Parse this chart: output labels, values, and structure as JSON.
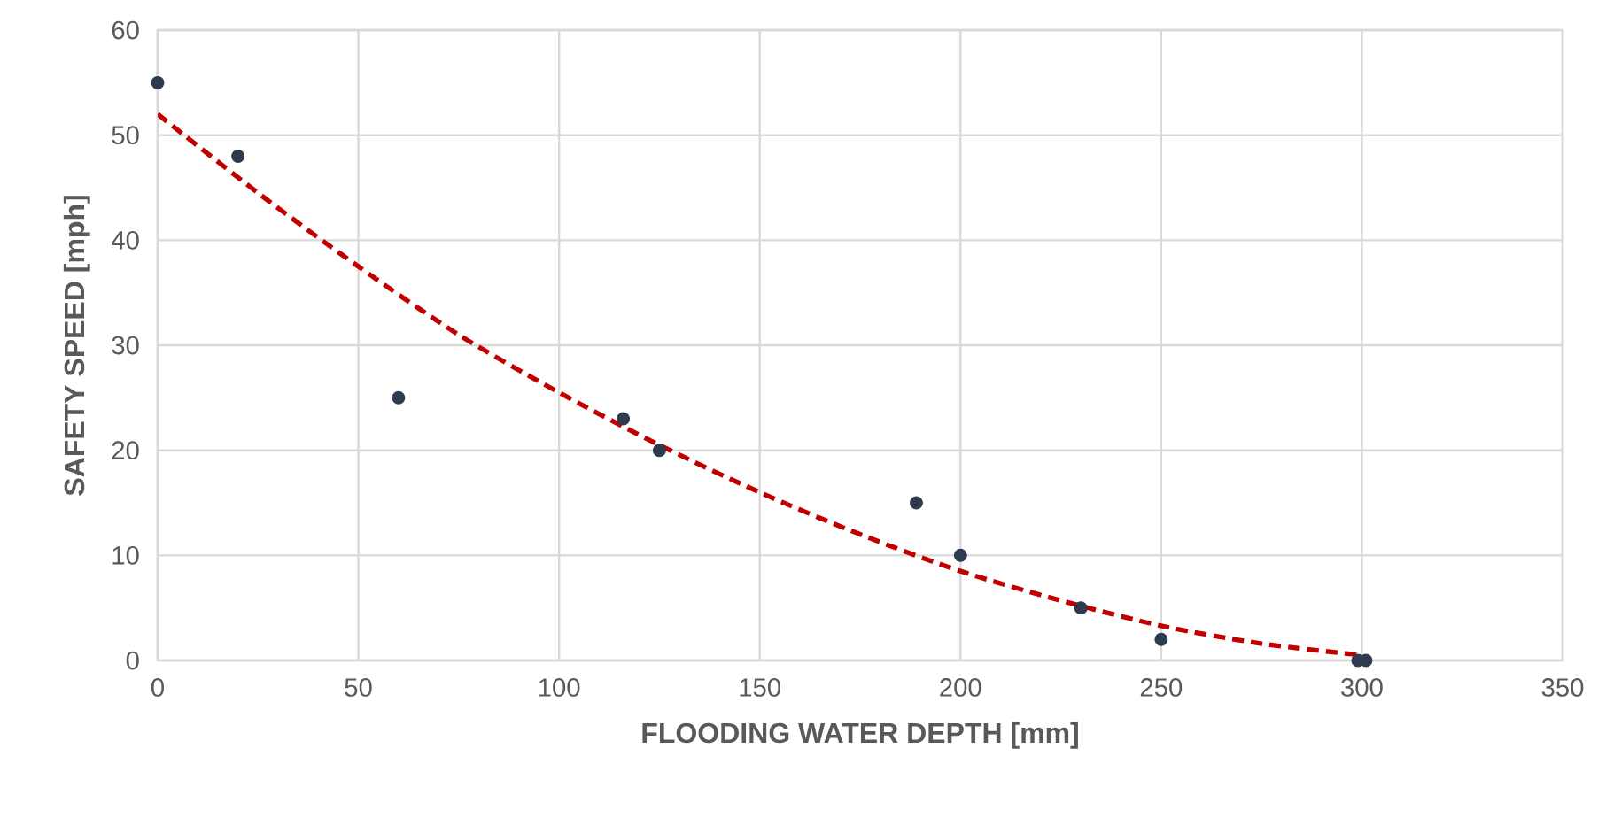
{
  "chart_data": {
    "type": "scatter",
    "xlabel": "FLOODING WATER DEPTH  [mm]",
    "ylabel": "SAFETY SPEED  [mph]",
    "xlim": [
      0,
      350
    ],
    "ylim": [
      0,
      60
    ],
    "xticks": [
      0,
      50,
      100,
      150,
      200,
      250,
      300,
      350
    ],
    "yticks": [
      0,
      10,
      20,
      30,
      40,
      50,
      60
    ],
    "grid": true,
    "series": [
      {
        "color": "#2e3a4e",
        "marker": "circle",
        "x": [
          0,
          20,
          60,
          116,
          125,
          189,
          200,
          230,
          250,
          299,
          301
        ],
        "values": [
          55,
          48,
          25,
          23,
          20,
          15,
          10,
          5,
          2,
          0,
          0
        ]
      },
      {
        "type": "line",
        "color": "#c00000",
        "marker": "none",
        "line_style": "dashed",
        "x": [
          0,
          25,
          50,
          75,
          100,
          125,
          150,
          175,
          200,
          225,
          250,
          275,
          300
        ],
        "values": [
          52,
          44.5,
          37.5,
          31,
          25.5,
          20.5,
          16,
          12,
          8.5,
          5.7,
          3.3,
          1.6,
          0.5
        ]
      }
    ]
  }
}
